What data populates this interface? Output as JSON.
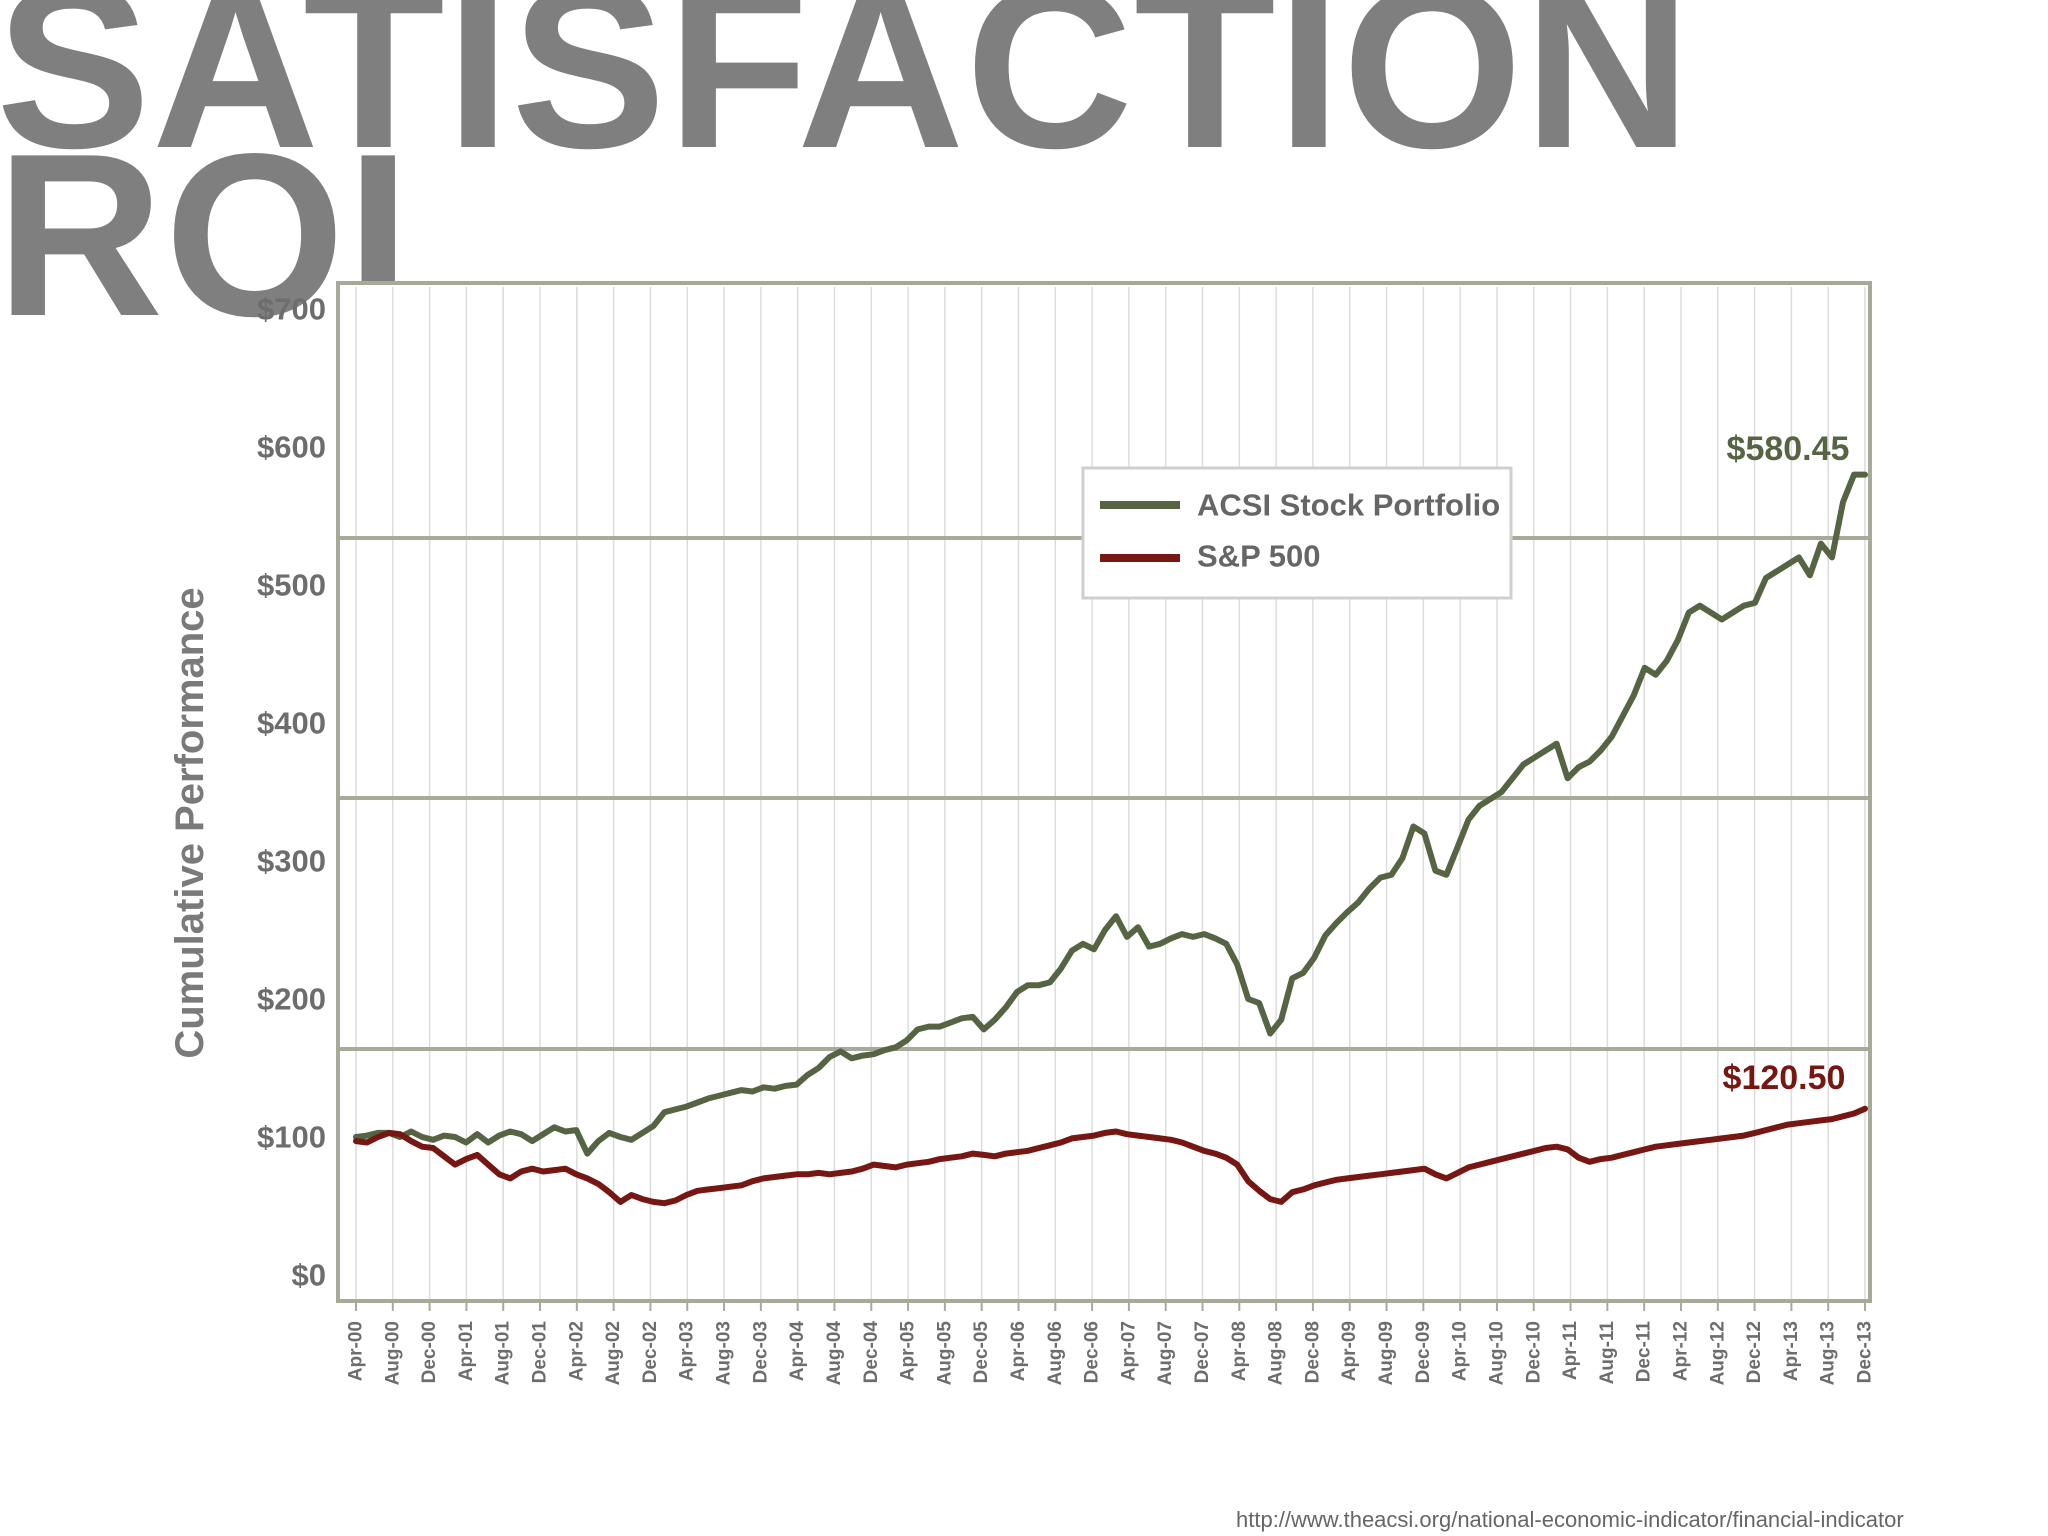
{
  "headline": {
    "line1": "SATISFACTION",
    "line2": "ROI"
  },
  "source_url": "http://www.theacsi.org/national-economic-indicator/financial-indicator",
  "colors": {
    "headline": "#7f7f7f",
    "acsi": "#566444",
    "sp500": "#761713",
    "axis_text": "#6d6d6d",
    "frame": "#a5ab98"
  },
  "chart_data": {
    "type": "line",
    "title": "",
    "ylabel": "Cumulative Performance",
    "xlabel": "",
    "ylim": [
      0,
      700
    ],
    "grid": true,
    "legend_position": "top-center",
    "y_ticks": [
      "$0",
      "$100",
      "$200",
      "$300",
      "$400",
      "$500",
      "$600",
      "$700"
    ],
    "x_ticks": [
      "Apr-00",
      "Aug-00",
      "Dec-00",
      "Apr-01",
      "Aug-01",
      "Dec-01",
      "Apr-02",
      "Aug-02",
      "Dec-02",
      "Apr-03",
      "Aug-03",
      "Dec-03",
      "Apr-04",
      "Aug-04",
      "Dec-04",
      "Apr-05",
      "Aug-05",
      "Dec-05",
      "Apr-06",
      "Aug-06",
      "Dec-06",
      "Apr-07",
      "Aug-07",
      "Dec-07",
      "Apr-08",
      "Aug-08",
      "Dec-08",
      "Apr-09",
      "Aug-09",
      "Dec-09",
      "Apr-10",
      "Aug-10",
      "Dec-10",
      "Apr-11",
      "Aug-11",
      "Dec-11",
      "Apr-12",
      "Aug-12",
      "Dec-12",
      "Apr-13",
      "Aug-13",
      "Dec-13"
    ],
    "series": [
      {
        "name": "ACSI Stock Portfolio",
        "end_label": "$580.45",
        "values": [
          100,
          101,
          103,
          103,
          100,
          104,
          100,
          98,
          101,
          100,
          96,
          102,
          96,
          101,
          104,
          102,
          97,
          102,
          107,
          104,
          105,
          88,
          97,
          103,
          100,
          98,
          103,
          108,
          118,
          120,
          122,
          125,
          128,
          130,
          132,
          134,
          133,
          136,
          135,
          137,
          138,
          145,
          150,
          158,
          162,
          157,
          159,
          160,
          163,
          165,
          170,
          178,
          180,
          180,
          183,
          186,
          187,
          178,
          185,
          194,
          205,
          210,
          210,
          212,
          222,
          235,
          240,
          236,
          250,
          260,
          245,
          252,
          238,
          240,
          244,
          247,
          245,
          247,
          244,
          240,
          225,
          200,
          197,
          175,
          185,
          215,
          219,
          230,
          246,
          255,
          263,
          270,
          280,
          288,
          290,
          302,
          325,
          320,
          293,
          290,
          310,
          330,
          340,
          345,
          350,
          360,
          370,
          375,
          380,
          385,
          360,
          368,
          372,
          380,
          390,
          405,
          420,
          440,
          435,
          445,
          460,
          480,
          485,
          480,
          475,
          480,
          485,
          487,
          505,
          510,
          515,
          520,
          507,
          530,
          520,
          560,
          580,
          580
        ]
      },
      {
        "name": "S&P 500",
        "end_label": "$120.50",
        "values": [
          97,
          96,
          100,
          103,
          102,
          97,
          93,
          92,
          86,
          80,
          84,
          87,
          80,
          73,
          70,
          75,
          77,
          75,
          76,
          77,
          73,
          70,
          66,
          60,
          53,
          58,
          55,
          53,
          52,
          54,
          58,
          61,
          62,
          63,
          64,
          65,
          68,
          70,
          71,
          72,
          73,
          73,
          74,
          73,
          74,
          75,
          77,
          80,
          79,
          78,
          80,
          81,
          82,
          84,
          85,
          86,
          88,
          87,
          86,
          88,
          89,
          90,
          92,
          94,
          96,
          99,
          100,
          101,
          103,
          104,
          102,
          101,
          100,
          99,
          98,
          96,
          93,
          90,
          88,
          85,
          80,
          68,
          61,
          55,
          53,
          60,
          62,
          65,
          67,
          69,
          70,
          71,
          72,
          73,
          74,
          75,
          76,
          77,
          73,
          70,
          74,
          78,
          80,
          82,
          84,
          86,
          88,
          90,
          92,
          93,
          91,
          85,
          82,
          84,
          85,
          87,
          89,
          91,
          93,
          94,
          95,
          96,
          97,
          98,
          99,
          100,
          101,
          103,
          105,
          107,
          109,
          110,
          111,
          112,
          113,
          115,
          117,
          120.5
        ]
      }
    ]
  }
}
